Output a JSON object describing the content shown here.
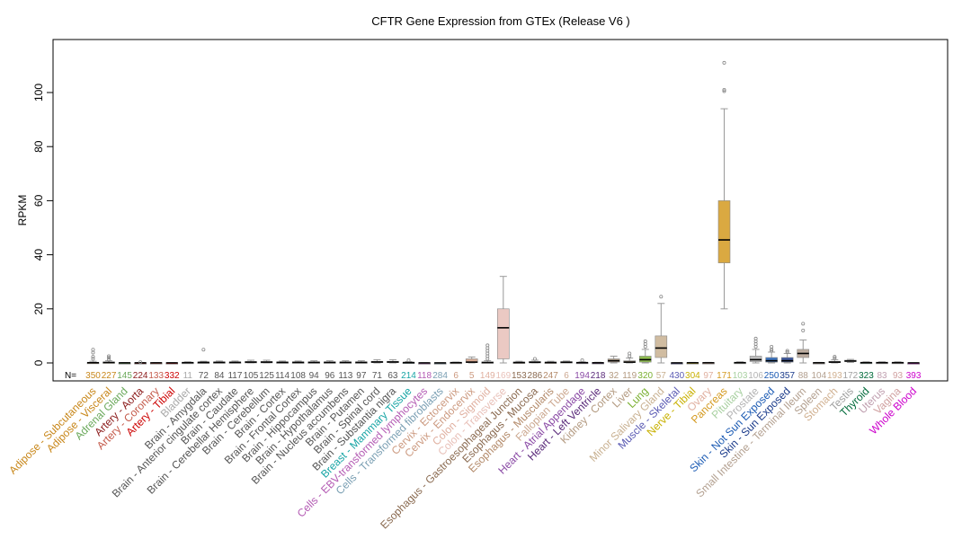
{
  "chart_data": {
    "type": "box",
    "title": "CFTR Gene Expression from GTEx (Release  V6 )",
    "ylabel": "RPKM",
    "xlabel": "",
    "ylim": [
      -6,
      118
    ],
    "yticks": [
      0,
      20,
      40,
      60,
      80,
      100
    ],
    "n_prefix": "N=",
    "grid": false,
    "categories": [
      {
        "name": "Adipose - Subcutaneous",
        "n": "350",
        "color": "#c8871a",
        "q1": 0.02,
        "median": 0.08,
        "q3": 0.2,
        "lo": 0,
        "hi": 0.6,
        "outliers": [
          1.5,
          2.3,
          3.8,
          4.9
        ]
      },
      {
        "name": "Adipose - Visceral",
        "n": "227",
        "color": "#c8871a",
        "q1": 0.05,
        "median": 0.15,
        "q3": 0.35,
        "lo": 0,
        "hi": 0.8,
        "outliers": [
          1.2,
          1.9,
          2.5
        ]
      },
      {
        "name": "Adrenal Gland",
        "n": "145",
        "color": "#6aa85a",
        "q1": 0.01,
        "median": 0.03,
        "q3": 0.06,
        "lo": 0,
        "hi": 0.15,
        "outliers": []
      },
      {
        "name": "Artery - Aorta",
        "n": "224",
        "color": "#8b1a1a",
        "q1": 0.01,
        "median": 0.03,
        "q3": 0.07,
        "lo": 0,
        "hi": 0.15,
        "outliers": [
          0.3
        ]
      },
      {
        "name": "Artery - Coronary",
        "n": "133",
        "color": "#c45a4a",
        "q1": 0.01,
        "median": 0.03,
        "q3": 0.07,
        "lo": 0,
        "hi": 0.15,
        "outliers": []
      },
      {
        "name": "Artery - Tibial",
        "n": "332",
        "color": "#cc0000",
        "q1": 0.01,
        "median": 0.02,
        "q3": 0.05,
        "lo": 0,
        "hi": 0.1,
        "outliers": []
      },
      {
        "name": "Bladder",
        "n": "11",
        "color": "#a8a8a8",
        "q1": 0.05,
        "median": 0.1,
        "q3": 0.2,
        "lo": 0,
        "hi": 0.4,
        "outliers": []
      },
      {
        "name": "Brain - Amygdala",
        "n": "72",
        "color": "#555555",
        "q1": 0.1,
        "median": 0.2,
        "q3": 0.3,
        "lo": 0,
        "hi": 0.6,
        "outliers": [
          4.9
        ]
      },
      {
        "name": "Brain - Anterior cingulate cortex",
        "n": "84",
        "color": "#555555",
        "q1": 0.1,
        "median": 0.2,
        "q3": 0.35,
        "lo": 0,
        "hi": 0.7,
        "outliers": []
      },
      {
        "name": "Brain - Caudate",
        "n": "117",
        "color": "#555555",
        "q1": 0.1,
        "median": 0.2,
        "q3": 0.35,
        "lo": 0,
        "hi": 0.7,
        "outliers": []
      },
      {
        "name": "Brain - Cerebellar Hemisphere",
        "n": "105",
        "color": "#555555",
        "q1": 0.2,
        "median": 0.3,
        "q3": 0.5,
        "lo": 0,
        "hi": 1.0,
        "outliers": []
      },
      {
        "name": "Brain - Cerebellum",
        "n": "125",
        "color": "#555555",
        "q1": 0.2,
        "median": 0.3,
        "q3": 0.5,
        "lo": 0,
        "hi": 1.0,
        "outliers": []
      },
      {
        "name": "Brain - Cortex",
        "n": "114",
        "color": "#555555",
        "q1": 0.1,
        "median": 0.2,
        "q3": 0.35,
        "lo": 0,
        "hi": 0.7,
        "outliers": []
      },
      {
        "name": "Brain - Frontal Cortex",
        "n": "108",
        "color": "#555555",
        "q1": 0.1,
        "median": 0.2,
        "q3": 0.35,
        "lo": 0,
        "hi": 0.7,
        "outliers": []
      },
      {
        "name": "Brain - Hippocampus",
        "n": "94",
        "color": "#555555",
        "q1": 0.1,
        "median": 0.2,
        "q3": 0.35,
        "lo": 0,
        "hi": 0.8,
        "outliers": []
      },
      {
        "name": "Brain - Hypothalamus",
        "n": "96",
        "color": "#555555",
        "q1": 0.1,
        "median": 0.2,
        "q3": 0.35,
        "lo": 0,
        "hi": 0.8,
        "outliers": []
      },
      {
        "name": "Brain - Nucleus accumbens",
        "n": "113",
        "color": "#555555",
        "q1": 0.1,
        "median": 0.2,
        "q3": 0.35,
        "lo": 0,
        "hi": 0.8,
        "outliers": []
      },
      {
        "name": "Brain - Putamen",
        "n": "97",
        "color": "#555555",
        "q1": 0.1,
        "median": 0.2,
        "q3": 0.35,
        "lo": 0,
        "hi": 0.8,
        "outliers": []
      },
      {
        "name": "Brain - Spinal cord",
        "n": "71",
        "color": "#555555",
        "q1": 0.2,
        "median": 0.35,
        "q3": 0.6,
        "lo": 0,
        "hi": 1.2,
        "outliers": []
      },
      {
        "name": "Brain - Substantia nigra",
        "n": "63",
        "color": "#555555",
        "q1": 0.2,
        "median": 0.35,
        "q3": 0.6,
        "lo": 0,
        "hi": 1.2,
        "outliers": []
      },
      {
        "name": "Breast - Mammary Tissue",
        "n": "214",
        "color": "#17a5a5",
        "q1": 0.05,
        "median": 0.12,
        "q3": 0.25,
        "lo": 0,
        "hi": 0.5,
        "outliers": [
          1.0
        ]
      },
      {
        "name": "Cells - EBV-transformed lymphocytes",
        "n": "118",
        "color": "#b35ab3",
        "q1": 0.0,
        "median": 0.01,
        "q3": 0.02,
        "lo": 0,
        "hi": 0.05,
        "outliers": []
      },
      {
        "name": "Cells - Transformed fibroblasts",
        "n": "284",
        "color": "#7a9fb3",
        "q1": 0.0,
        "median": 0.01,
        "q3": 0.02,
        "lo": 0,
        "hi": 0.05,
        "outliers": []
      },
      {
        "name": "Cervix - Ectocervix",
        "n": "6",
        "color": "#cc9a80",
        "q1": 0.05,
        "median": 0.1,
        "q3": 0.2,
        "lo": 0,
        "hi": 0.3,
        "outliers": []
      },
      {
        "name": "Cervix - Endocervix",
        "n": "5",
        "color": "#cc9a80",
        "q1": 0.1,
        "median": 0.3,
        "q3": 1.5,
        "lo": 0,
        "hi": 2.2,
        "outliers": []
      },
      {
        "name": "Colon - Sigmoid",
        "n": "149",
        "color": "#e0b0a0",
        "q1": 0.05,
        "median": 0.15,
        "q3": 0.35,
        "lo": 0,
        "hi": 0.8,
        "outliers": [
          1.5,
          2.5,
          3.5,
          4.5,
          5.5,
          6.5
        ]
      },
      {
        "name": "Colon - Transverse",
        "n": "169",
        "color": "#e8c0b8",
        "q1": 1.5,
        "median": 13,
        "q3": 20,
        "lo": 0,
        "hi": 32,
        "outliers": []
      },
      {
        "name": "Esophagus - Gastroesophageal Junction",
        "n": "153",
        "color": "#8a6a50",
        "q1": 0.05,
        "median": 0.15,
        "q3": 0.3,
        "lo": 0,
        "hi": 0.6,
        "outliers": []
      },
      {
        "name": "Esophagus - Mucosa",
        "n": "286",
        "color": "#8a6a50",
        "q1": 0.1,
        "median": 0.25,
        "q3": 0.5,
        "lo": 0,
        "hi": 1.0,
        "outliers": [
          1.5
        ]
      },
      {
        "name": "Esophagus - Muscularis",
        "n": "247",
        "color": "#b38a6a",
        "q1": 0.05,
        "median": 0.15,
        "q3": 0.3,
        "lo": 0,
        "hi": 0.6,
        "outliers": []
      },
      {
        "name": "Fallopian Tube",
        "n": "6",
        "color": "#cca890",
        "q1": 0.1,
        "median": 0.25,
        "q3": 0.45,
        "lo": 0,
        "hi": 0.7,
        "outliers": []
      },
      {
        "name": "Heart - Atrial Appendage",
        "n": "194",
        "color": "#8a4aa5",
        "q1": 0.05,
        "median": 0.1,
        "q3": 0.2,
        "lo": 0,
        "hi": 0.4,
        "outliers": [
          1.0
        ]
      },
      {
        "name": "Heart - Left Ventricle",
        "n": "218",
        "color": "#5a2a7a",
        "q1": 0.02,
        "median": 0.05,
        "q3": 0.12,
        "lo": 0,
        "hi": 0.25,
        "outliers": []
      },
      {
        "name": "Kidney - Cortex",
        "n": "32",
        "color": "#b39a80",
        "q1": 0.3,
        "median": 0.8,
        "q3": 1.5,
        "lo": 0,
        "hi": 2.5,
        "outliers": []
      },
      {
        "name": "Liver",
        "n": "119",
        "color": "#b39a80",
        "q1": 0.1,
        "median": 0.3,
        "q3": 0.8,
        "lo": 0,
        "hi": 1.8,
        "outliers": [
          2.5,
          3.5
        ]
      },
      {
        "name": "Lung",
        "n": "320",
        "color": "#7ab030",
        "q1": 0.3,
        "median": 1.2,
        "q3": 2.5,
        "lo": 0,
        "hi": 5,
        "outliers": [
          6,
          7,
          8
        ]
      },
      {
        "name": "Minor Salivary Gland",
        "n": "57",
        "color": "#c8b090",
        "q1": 2.0,
        "median": 5.5,
        "q3": 10,
        "lo": 0,
        "hi": 22,
        "outliers": [
          24.5
        ]
      },
      {
        "name": "Muscle - Skeletal",
        "n": "430",
        "color": "#5a5ab3",
        "q1": 0.0,
        "median": 0.01,
        "q3": 0.02,
        "lo": 0,
        "hi": 0.05,
        "outliers": []
      },
      {
        "name": "Nerve - Tibial",
        "n": "304",
        "color": "#c8b000",
        "q1": 0.02,
        "median": 0.05,
        "q3": 0.1,
        "lo": 0,
        "hi": 0.2,
        "outliers": []
      },
      {
        "name": "Ovary",
        "n": "97",
        "color": "#e0b0a0",
        "q1": 0.02,
        "median": 0.05,
        "q3": 0.1,
        "lo": 0,
        "hi": 0.2,
        "outliers": []
      },
      {
        "name": "Pancreas",
        "n": "171",
        "color": "#d49a20",
        "q1": 37,
        "median": 45.5,
        "q3": 60,
        "lo": 20,
        "hi": 94,
        "outliers": [
          100.5,
          101,
          111
        ]
      },
      {
        "name": "Pituitary",
        "n": "103",
        "color": "#a8d0a0",
        "q1": 0.05,
        "median": 0.1,
        "q3": 0.2,
        "lo": 0,
        "hi": 0.4,
        "outliers": []
      },
      {
        "name": "Prostate",
        "n": "106",
        "color": "#b3b3b3",
        "q1": 0.5,
        "median": 1.2,
        "q3": 2.5,
        "lo": 0,
        "hi": 5,
        "outliers": [
          6,
          7,
          8,
          9
        ]
      },
      {
        "name": "Skin - Not Sun Exposed",
        "n": "250",
        "color": "#1a5ab3",
        "q1": 0.3,
        "median": 0.8,
        "q3": 2.0,
        "lo": 0,
        "hi": 4,
        "outliers": [
          4.5,
          5,
          6
        ]
      },
      {
        "name": "Skin - Sun Exposed",
        "n": "357",
        "color": "#1a3a8a",
        "q1": 0.3,
        "median": 0.8,
        "q3": 2.0,
        "lo": 0,
        "hi": 3.5,
        "outliers": [
          4,
          4.5
        ]
      },
      {
        "name": "Small Intestine - Terminal Ileum",
        "n": "88",
        "color": "#b3a090",
        "q1": 2.0,
        "median": 3.5,
        "q3": 5,
        "lo": 0,
        "hi": 8.5,
        "outliers": [
          12,
          14.5
        ]
      },
      {
        "name": "Spleen",
        "n": "104",
        "color": "#b3a090",
        "q1": 0.02,
        "median": 0.05,
        "q3": 0.1,
        "lo": 0,
        "hi": 0.2,
        "outliers": []
      },
      {
        "name": "Stomach",
        "n": "193",
        "color": "#d0b090",
        "q1": 0.1,
        "median": 0.3,
        "q3": 0.6,
        "lo": 0,
        "hi": 1.2,
        "outliers": [
          1.8,
          2.3
        ]
      },
      {
        "name": "Testis",
        "n": "172",
        "color": "#a0a0a0",
        "q1": 0.5,
        "median": 0.7,
        "q3": 1.0,
        "lo": 0.2,
        "hi": 1.3,
        "outliers": []
      },
      {
        "name": "Thyroid",
        "n": "323",
        "color": "#006a3a",
        "q1": 0.05,
        "median": 0.1,
        "q3": 0.2,
        "lo": 0,
        "hi": 0.4,
        "outliers": []
      },
      {
        "name": "Uterus",
        "n": "83",
        "color": "#c0a0b0",
        "q1": 0.05,
        "median": 0.1,
        "q3": 0.2,
        "lo": 0,
        "hi": 0.4,
        "outliers": []
      },
      {
        "name": "Vagina",
        "n": "93",
        "color": "#d0a0a0",
        "q1": 0.05,
        "median": 0.1,
        "q3": 0.2,
        "lo": 0,
        "hi": 0.4,
        "outliers": []
      },
      {
        "name": "Whole Blood",
        "n": "393",
        "color": "#cc00cc",
        "q1": 0.0,
        "median": 0.01,
        "q3": 0.02,
        "lo": 0,
        "hi": 0.04,
        "outliers": []
      }
    ]
  }
}
